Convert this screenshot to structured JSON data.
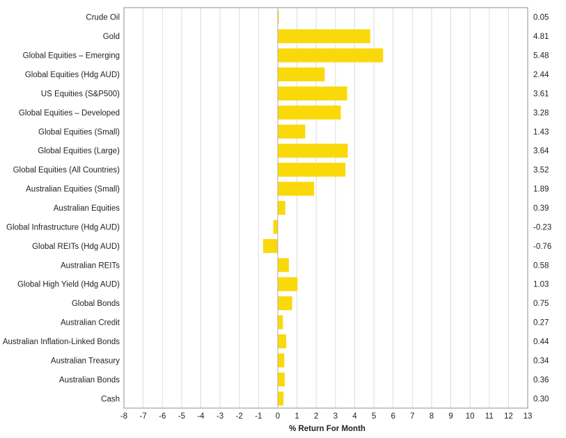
{
  "chart_data": {
    "type": "bar",
    "orientation": "horizontal",
    "categories": [
      "Crude Oil",
      "Gold",
      "Global Equities – Emerging",
      "Global Equities (Hdg AUD)",
      "US Equities (S&P500)",
      "Global Equities – Developed",
      "Global Equities (Small)",
      "Global Equities (Large)",
      "Global Equities (All Countries)",
      "Australian Equities (Small)",
      "Australian Equities",
      "Global Infrastructure (Hdg AUD)",
      "Global REITs (Hdg AUD)",
      "Australian REITs",
      "Global High Yield (Hdg AUD)",
      "Global Bonds",
      "Australian Credit",
      "Australian Inflation-Linked Bonds",
      "Australian Treasury",
      "Australian Bonds",
      "Cash"
    ],
    "values": [
      0.05,
      4.81,
      5.48,
      2.44,
      3.61,
      3.28,
      1.43,
      3.64,
      3.52,
      1.89,
      0.39,
      -0.23,
      -0.76,
      0.58,
      1.03,
      0.75,
      0.27,
      0.44,
      0.34,
      0.36,
      0.3
    ],
    "value_labels": [
      "0.05",
      "4.81",
      "5.48",
      "2.44",
      "3.61",
      "3.28",
      "1.43",
      "3.64",
      "3.52",
      "1.89",
      "0.39",
      "-0.23",
      "-0.76",
      "0.58",
      "1.03",
      "0.75",
      "0.27",
      "0.44",
      "0.34",
      "0.36",
      "0.30"
    ],
    "xlabel": "% Return For Month",
    "ylabel": "",
    "title": "",
    "xlim": [
      -8,
      13
    ],
    "xticks": [
      "-8",
      "-7",
      "-6",
      "-5",
      "-4",
      "-3",
      "-2",
      "-1",
      "0",
      "1",
      "2",
      "3",
      "4",
      "5",
      "6",
      "7",
      "8",
      "9",
      "10",
      "11",
      "12",
      "13"
    ],
    "grid": true,
    "bar_color": "#F9D90A",
    "grid_color": "#dcdcdc",
    "axis_color": "#a0a0a0"
  }
}
